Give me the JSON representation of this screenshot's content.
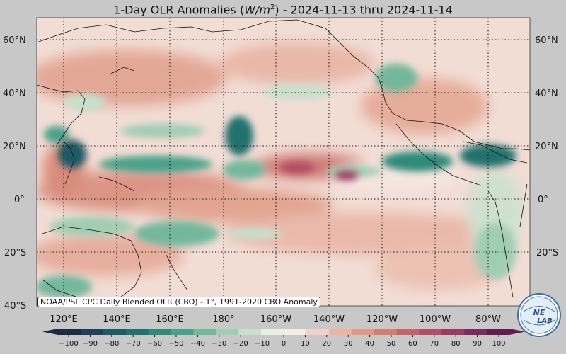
{
  "title": {
    "prefix": "1-Day OLR Anomalies (",
    "unit_base": "W/m",
    "unit_exp": "2",
    "suffix": ") - 2024-11-13 thru 2024-11-14"
  },
  "credit": "NOAA/PSL CPC Daily Blended OLR (CBO) - 1°, 1991-2020 CBO Anomaly",
  "lat_labels": [
    "60°N",
    "40°N",
    "20°N",
    "0°",
    "20°S",
    "40°S"
  ],
  "lon_labels": [
    "120°E",
    "140°E",
    "160°E",
    "180°",
    "160°W",
    "140°W",
    "120°W",
    "100°W",
    "80°W"
  ],
  "colorbar": {
    "ticks": [
      "−100",
      "−90",
      "−80",
      "−70",
      "−60",
      "−50",
      "−40",
      "−30",
      "−20",
      "−10",
      "0",
      "10",
      "20",
      "30",
      "40",
      "50",
      "60",
      "70",
      "80",
      "90",
      "100"
    ],
    "colors": [
      "#1b2a45",
      "#1f3f5a",
      "#1f5a66",
      "#22716e",
      "#2f8a7a",
      "#4ba08a",
      "#74b79d",
      "#a1cdb3",
      "#c8e0cc",
      "#e8f0e6",
      "#f7ecea",
      "#f2d3c9",
      "#eab5a3",
      "#df9a86",
      "#d27f72",
      "#c46468",
      "#b24d65",
      "#9b3a65",
      "#7e2a60",
      "#5e1c50"
    ]
  },
  "logo": {
    "text_top": "NE",
    "text_bottom": "LAB"
  },
  "colors": {
    "positive_anomaly": "#df9a86",
    "negative_anomaly": "#2f8a7a",
    "neutral": "#f7ecea"
  }
}
